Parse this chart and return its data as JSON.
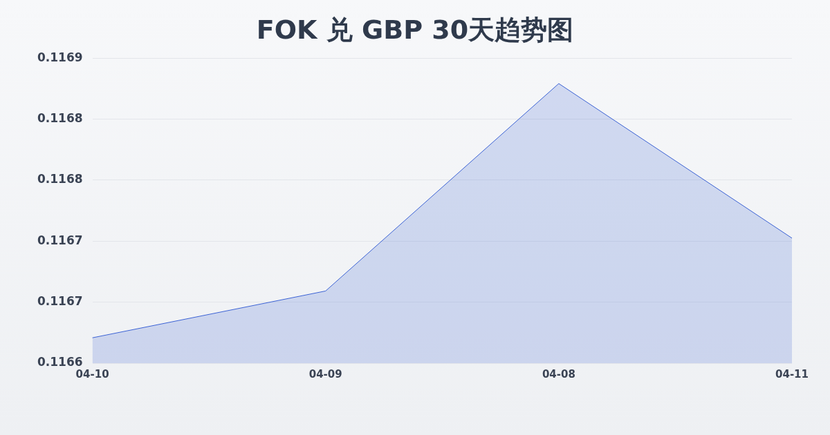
{
  "chart_data": {
    "type": "area",
    "title": "FOK 兑 GBP 30天趋势图",
    "categories": [
      "04-10",
      "04-09",
      "04-08",
      "04-11"
    ],
    "series": [
      {
        "color": "#3b62d4",
        "values": [
          0.116625,
          0.116671,
          0.116875,
          0.116723
        ]
      }
    ],
    "ylim": [
      0.1166,
      0.1169
    ],
    "yticks": [
      {
        "value": 0.1166,
        "label": "0.1166"
      },
      {
        "value": 0.11666,
        "label": "0.1167"
      },
      {
        "value": 0.11672,
        "label": "0.1167"
      },
      {
        "value": 0.11678,
        "label": "0.1168"
      },
      {
        "value": 0.11684,
        "label": "0.1168"
      },
      {
        "value": 0.1169,
        "label": "0.1169"
      }
    ],
    "grid": "y",
    "legend": false,
    "marker": "none",
    "line_style": "solid"
  }
}
